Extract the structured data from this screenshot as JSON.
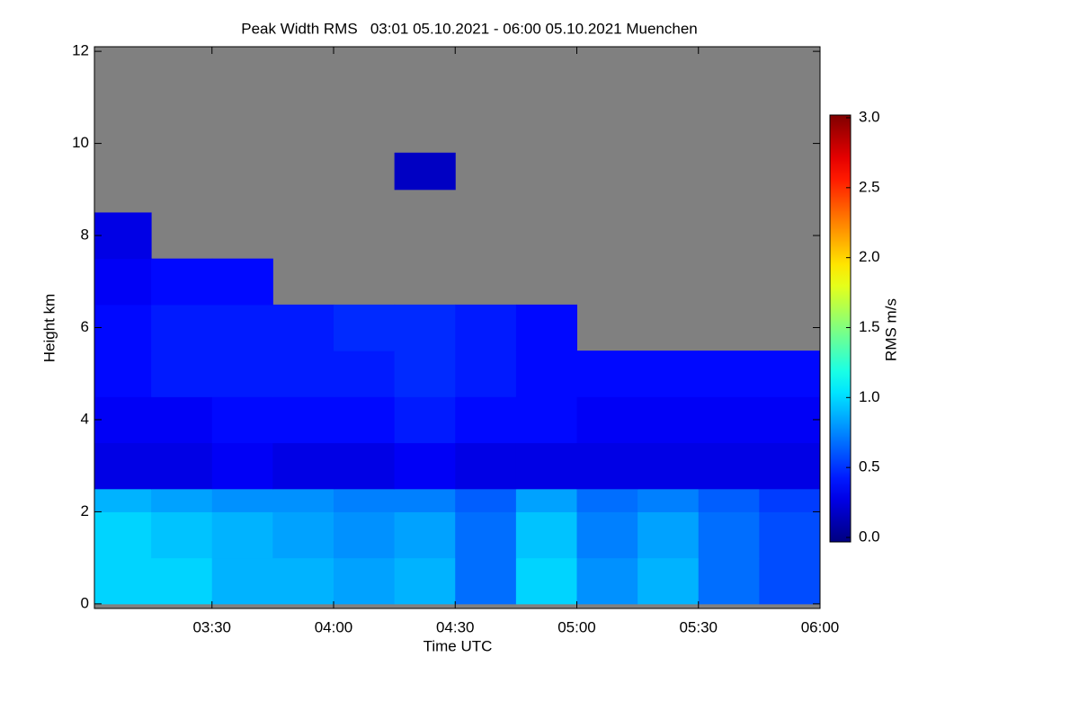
{
  "chart_data": {
    "type": "heatmap",
    "title": "Peak Width RMS   03:01 05.10.2021 - 06:00 05.10.2021 Muenchen",
    "xlabel": "Time UTC",
    "ylabel": "Height km",
    "colorbar_label": "RMS m/s",
    "colormap": "jet",
    "missing_color": "#808080",
    "x_edges": [
      181,
      195,
      210,
      225,
      240,
      255,
      270,
      285,
      300,
      315,
      330,
      345,
      360
    ],
    "y_edges": [
      0,
      1,
      2,
      2.5,
      3.5,
      4.5,
      5.5,
      6.5,
      7.5,
      8.5,
      9.0,
      9.8
    ],
    "z": [
      [
        1.0,
        1.0,
        0.9,
        0.9,
        0.85,
        0.9,
        0.7,
        1.0,
        0.8,
        0.9,
        0.7,
        0.6
      ],
      [
        1.0,
        0.95,
        0.9,
        0.85,
        0.8,
        0.85,
        0.7,
        0.95,
        0.75,
        0.85,
        0.7,
        0.6
      ],
      [
        0.9,
        0.85,
        0.8,
        0.8,
        0.75,
        0.75,
        0.65,
        0.85,
        0.7,
        0.75,
        0.65,
        0.55
      ],
      [
        0.3,
        0.3,
        0.35,
        0.3,
        0.3,
        0.35,
        0.3,
        0.3,
        0.3,
        0.3,
        0.3,
        0.3
      ],
      [
        0.35,
        0.35,
        0.4,
        0.4,
        0.4,
        0.45,
        0.4,
        0.4,
        0.35,
        0.35,
        0.35,
        0.35
      ],
      [
        0.4,
        0.45,
        0.45,
        0.45,
        0.45,
        0.5,
        0.45,
        0.4,
        0.4,
        0.4,
        0.4,
        0.4
      ],
      [
        0.4,
        0.45,
        0.45,
        0.45,
        0.5,
        0.5,
        0.45,
        0.4,
        null,
        null,
        null,
        null
      ],
      [
        0.35,
        0.4,
        0.4,
        null,
        null,
        null,
        null,
        null,
        null,
        null,
        null,
        null
      ],
      [
        0.3,
        null,
        null,
        null,
        null,
        null,
        null,
        null,
        null,
        null,
        null,
        null
      ],
      [
        null,
        null,
        null,
        null,
        null,
        null,
        null,
        null,
        null,
        null,
        null,
        null
      ],
      [
        null,
        null,
        null,
        null,
        null,
        0.2,
        null,
        null,
        null,
        null,
        null,
        null
      ]
    ],
    "xlim": [
      181,
      360
    ],
    "xticks": [
      {
        "value": 210,
        "label": "03:30"
      },
      {
        "value": 240,
        "label": "04:00"
      },
      {
        "value": 270,
        "label": "04:30"
      },
      {
        "value": 300,
        "label": "05:00"
      },
      {
        "value": 330,
        "label": "05:30"
      },
      {
        "value": 360,
        "label": "06:00"
      }
    ],
    "ylim": [
      -0.1,
      12.1
    ],
    "yticks": [
      0,
      2,
      4,
      6,
      8,
      10,
      12
    ],
    "clim": [
      0,
      3
    ],
    "cticks": [
      {
        "value": 0,
        "label": "0.0"
      },
      {
        "value": 0.5,
        "label": "0.5"
      },
      {
        "value": 1,
        "label": "1.0"
      },
      {
        "value": 1.5,
        "label": "1.5"
      },
      {
        "value": 2,
        "label": "2.0"
      },
      {
        "value": 2.5,
        "label": "2.5"
      },
      {
        "value": 3,
        "label": "3.0"
      }
    ]
  }
}
